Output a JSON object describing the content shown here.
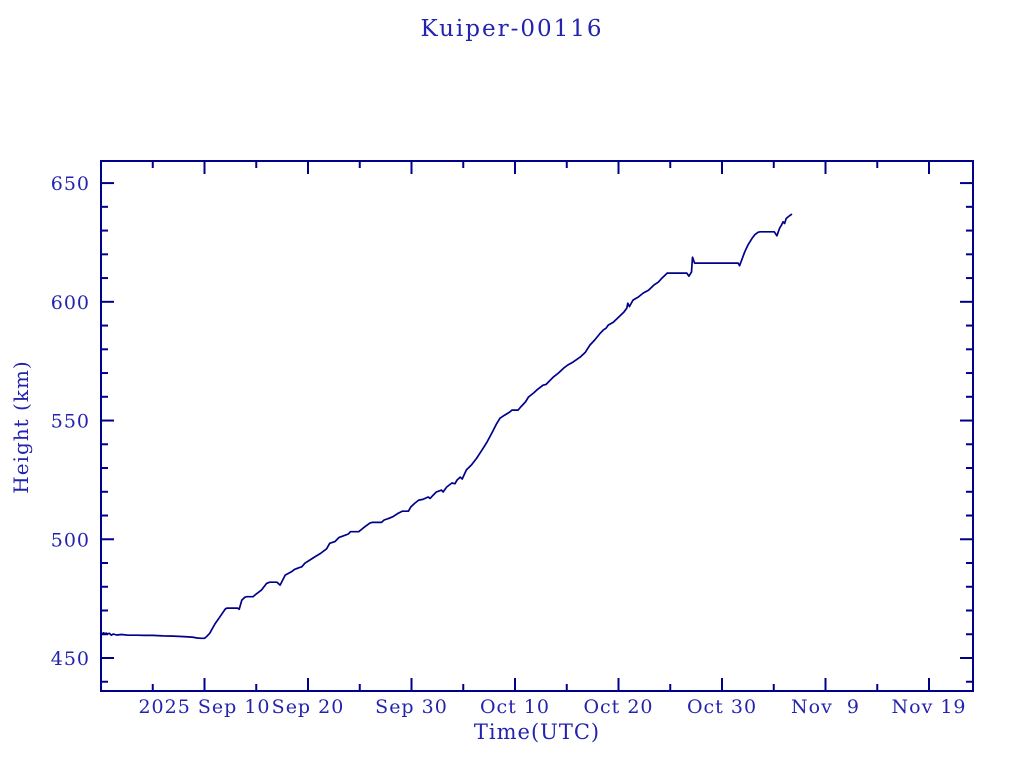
{
  "colors": {
    "background": "#ffffff",
    "text_blue": "#2323b0",
    "axis_blue": "#00008b",
    "line_blue": "#00008b"
  },
  "chart_data": {
    "type": "line",
    "title": "Kuiper-00116",
    "xlabel": "Time(UTC)",
    "ylabel": "Height (km)",
    "grid": false,
    "legend": "none",
    "x_axis": {
      "epoch_day0": "2025-08-31",
      "range_days": [
        0,
        84.25
      ],
      "major_ticks": [
        {
          "day": 10,
          "label": "2025 Sep 10"
        },
        {
          "day": 20,
          "label": "Sep 20"
        },
        {
          "day": 30,
          "label": "Sep 30"
        },
        {
          "day": 40,
          "label": "Oct 10"
        },
        {
          "day": 50,
          "label": "Oct 20"
        },
        {
          "day": 60,
          "label": "Oct 30"
        },
        {
          "day": 70,
          "label": "Nov  9"
        },
        {
          "day": 80,
          "label": "Nov 19"
        }
      ],
      "minor_tick_days": [
        5,
        15,
        25,
        35,
        45,
        55,
        65,
        75
      ]
    },
    "y_axis": {
      "range_km": [
        436.1,
        659.3
      ],
      "major_ticks": [
        450,
        500,
        550,
        600,
        650
      ],
      "minor_ticks": [
        440,
        460,
        470,
        480,
        490,
        510,
        520,
        530,
        540,
        560,
        570,
        580,
        590,
        610,
        620,
        630,
        640
      ]
    },
    "series": [
      {
        "name": "height_km",
        "day_height_points": [
          [
            0,
            460.6
          ],
          [
            0.12,
            460.1
          ],
          [
            0.25,
            460.6
          ],
          [
            0.38,
            460.1
          ],
          [
            0.5,
            460.5
          ],
          [
            0.65,
            460.1
          ],
          [
            0.8,
            460.4
          ],
          [
            1,
            459.6
          ],
          [
            1.2,
            460.1
          ],
          [
            1.5,
            459.7
          ],
          [
            2,
            459.9
          ],
          [
            2.6,
            459.6
          ],
          [
            3.4,
            459.6
          ],
          [
            4.2,
            459.5
          ],
          [
            5,
            459.5
          ],
          [
            6,
            459.3
          ],
          [
            7,
            459.2
          ],
          [
            8,
            459
          ],
          [
            8.8,
            458.8
          ],
          [
            9.3,
            458.4
          ],
          [
            9.7,
            458.3
          ],
          [
            10,
            458.3
          ],
          [
            10.2,
            459
          ],
          [
            10.5,
            460.4
          ],
          [
            11,
            464.3
          ],
          [
            11.5,
            467.4
          ],
          [
            12,
            470.6
          ],
          [
            12.15,
            471
          ],
          [
            13.2,
            471
          ],
          [
            13.35,
            470.5
          ],
          [
            13.6,
            474.4
          ],
          [
            13.9,
            475.6
          ],
          [
            14.1,
            475.8
          ],
          [
            14.7,
            475.8
          ],
          [
            14.95,
            476.8
          ],
          [
            15.5,
            478.6
          ],
          [
            16,
            481.4
          ],
          [
            16.3,
            481.9
          ],
          [
            17,
            481.9
          ],
          [
            17.3,
            480.7
          ],
          [
            17.8,
            484.9
          ],
          [
            18.4,
            486.3
          ],
          [
            18.7,
            487.3
          ],
          [
            19.1,
            488
          ],
          [
            19.4,
            488.4
          ],
          [
            19.7,
            489.9
          ],
          [
            20.2,
            491.3
          ],
          [
            20.7,
            492.7
          ],
          [
            21.2,
            494
          ],
          [
            21.8,
            496
          ],
          [
            22.1,
            498.3
          ],
          [
            22.6,
            499
          ],
          [
            23,
            500.8
          ],
          [
            23.4,
            501.4
          ],
          [
            23.9,
            502.2
          ],
          [
            24.1,
            503.2
          ],
          [
            24.9,
            503.2
          ],
          [
            25.1,
            503.9
          ],
          [
            25.5,
            505.3
          ],
          [
            26,
            506.9
          ],
          [
            26.2,
            507.1
          ],
          [
            27.1,
            507.1
          ],
          [
            27.35,
            508.1
          ],
          [
            27.8,
            508.8
          ],
          [
            28.2,
            509.5
          ],
          [
            28.7,
            510.9
          ],
          [
            29.1,
            511.8
          ],
          [
            29.7,
            511.8
          ],
          [
            29.95,
            513.7
          ],
          [
            30.3,
            515.1
          ],
          [
            30.7,
            516.5
          ],
          [
            31.1,
            516.8
          ],
          [
            31.6,
            517.8
          ],
          [
            31.8,
            517.2
          ],
          [
            32.1,
            518.6
          ],
          [
            32.4,
            519.9
          ],
          [
            32.9,
            520.7
          ],
          [
            33.05,
            519.9
          ],
          [
            33.4,
            522
          ],
          [
            33.9,
            523.7
          ],
          [
            34.2,
            523.4
          ],
          [
            34.4,
            524.9
          ],
          [
            34.7,
            526.2
          ],
          [
            34.9,
            525.4
          ],
          [
            35.3,
            529.2
          ],
          [
            35.8,
            531.3
          ],
          [
            36.3,
            534.2
          ],
          [
            36.8,
            537.5
          ],
          [
            37.3,
            541
          ],
          [
            37.8,
            545
          ],
          [
            38.2,
            548.5
          ],
          [
            38.55,
            551
          ],
          [
            39,
            552.3
          ],
          [
            39.5,
            553.6
          ],
          [
            39.7,
            554.4
          ],
          [
            40.3,
            554.4
          ],
          [
            40.55,
            555.7
          ],
          [
            41,
            557.8
          ],
          [
            41.3,
            559.9
          ],
          [
            41.8,
            561.6
          ],
          [
            42.1,
            562.8
          ],
          [
            42.7,
            564.9
          ],
          [
            43,
            565.2
          ],
          [
            43.4,
            567
          ],
          [
            43.7,
            568.3
          ],
          [
            44.2,
            570
          ],
          [
            44.7,
            572.1
          ],
          [
            45.1,
            573.4
          ],
          [
            45.6,
            574.6
          ],
          [
            46.3,
            576.7
          ],
          [
            46.8,
            578.8
          ],
          [
            47,
            580.2
          ],
          [
            47.25,
            581.8
          ],
          [
            47.7,
            583.9
          ],
          [
            48.2,
            586.6
          ],
          [
            48.55,
            588.2
          ],
          [
            48.8,
            588.9
          ],
          [
            49,
            590.2
          ],
          [
            49.5,
            591.4
          ],
          [
            50,
            593.5
          ],
          [
            50.5,
            595.6
          ],
          [
            50.8,
            597.3
          ],
          [
            50.9,
            599.4
          ],
          [
            51.05,
            598
          ],
          [
            51.4,
            600.7
          ],
          [
            51.9,
            602
          ],
          [
            52.4,
            603.7
          ],
          [
            52.9,
            604.9
          ],
          [
            53.4,
            607
          ],
          [
            53.85,
            608.3
          ],
          [
            54.2,
            610
          ],
          [
            54.7,
            612.1
          ],
          [
            56.6,
            612.1
          ],
          [
            56.8,
            610.8
          ],
          [
            57.05,
            612.5
          ],
          [
            57.15,
            618.8
          ],
          [
            57.35,
            616.3
          ],
          [
            61.55,
            616.3
          ],
          [
            61.7,
            615.2
          ],
          [
            61.9,
            617.6
          ],
          [
            62.2,
            621.1
          ],
          [
            62.5,
            623.9
          ],
          [
            62.9,
            626.7
          ],
          [
            63.2,
            628.4
          ],
          [
            63.5,
            629.3
          ],
          [
            63.7,
            629.5
          ],
          [
            65.05,
            629.5
          ],
          [
            65.3,
            627.8
          ],
          [
            65.55,
            630.9
          ],
          [
            65.75,
            632.3
          ],
          [
            65.9,
            633.7
          ],
          [
            66.05,
            633
          ],
          [
            66.2,
            635.1
          ],
          [
            66.5,
            636.2
          ],
          [
            66.7,
            636.8
          ]
        ]
      }
    ]
  }
}
